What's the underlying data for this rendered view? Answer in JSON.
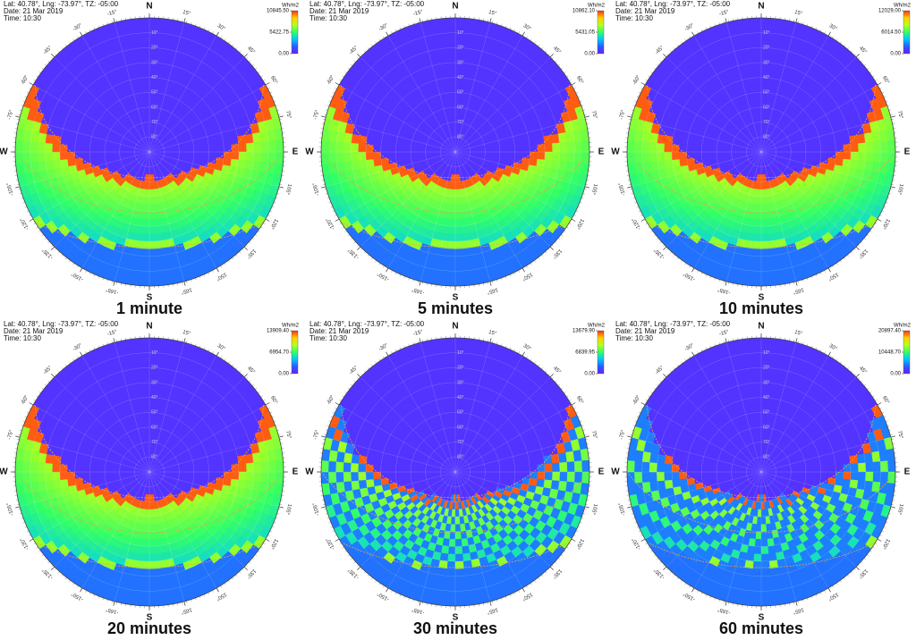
{
  "polar_axes": {
    "compass": [
      {
        "value": 0,
        "label": "N"
      },
      {
        "value": 90,
        "label": "E"
      },
      {
        "value": 180,
        "label": "S"
      },
      {
        "value": -90,
        "label": "W"
      }
    ],
    "azimuth_ticks": [
      {
        "value": -165,
        "label": "-165°"
      },
      {
        "value": -150,
        "label": "-150°"
      },
      {
        "value": -135,
        "label": "-135°"
      },
      {
        "value": -120,
        "label": "-120°"
      },
      {
        "value": -105,
        "label": "-105°"
      },
      {
        "value": -75,
        "label": "-75°"
      },
      {
        "value": -60,
        "label": "-60°"
      },
      {
        "value": -45,
        "label": "-45°"
      },
      {
        "value": -30,
        "label": "-30°"
      },
      {
        "value": -15,
        "label": "-15°"
      },
      {
        "value": 15,
        "label": "15°"
      },
      {
        "value": 30,
        "label": "30°"
      },
      {
        "value": 45,
        "label": "45°"
      },
      {
        "value": 60,
        "label": "60°"
      },
      {
        "value": 75,
        "label": "75°"
      },
      {
        "value": 105,
        "label": "105°"
      },
      {
        "value": 120,
        "label": "120°"
      },
      {
        "value": 135,
        "label": "135°"
      },
      {
        "value": 150,
        "label": "150°"
      },
      {
        "value": 165,
        "label": "165°"
      }
    ],
    "altitude_lim": [
      0,
      90
    ],
    "altitude_ticks": [
      {
        "value": 10,
        "label": "10°"
      },
      {
        "value": 20,
        "label": "20°"
      },
      {
        "value": 30,
        "label": "30°"
      },
      {
        "value": 40,
        "label": "40°"
      },
      {
        "value": 50,
        "label": "50°"
      },
      {
        "value": 60,
        "label": "60°"
      },
      {
        "value": 70,
        "label": "70°"
      },
      {
        "value": 80,
        "label": "80°"
      }
    ],
    "colormap": [
      "#6a1cff",
      "#2a5cff",
      "#00c8ff",
      "#33ff66",
      "#b8ff1a",
      "#ffd000",
      "#ff2a1a"
    ]
  },
  "chart_data": [
    {
      "type": "polar-heatmap",
      "header": [
        "Lat: 40.78°, Lng: -73.97°, TZ: -05:00",
        "Date: 21 Mar 2019",
        "Time: 10:30"
      ],
      "unit": "Wh/m2",
      "caption": "1 minute",
      "clim": [
        0,
        10845.5
      ],
      "cticks": [
        {
          "value": 0,
          "label": "0.00"
        },
        {
          "value": 5422.75,
          "label": "5422.75"
        },
        {
          "value": 10845.5,
          "label": "10845.50"
        }
      ]
    },
    {
      "type": "polar-heatmap",
      "header": [
        "Lat: 40.78°, Lng: -73.97°, TZ: -05:00",
        "Date: 21 Mar 2019",
        "Time: 10:30"
      ],
      "unit": "Wh/m2",
      "caption": "5 minutes",
      "clim": [
        0,
        10862.1
      ],
      "cticks": [
        {
          "value": 0,
          "label": "0.00"
        },
        {
          "value": 5431.05,
          "label": "5431.05"
        },
        {
          "value": 10862.1,
          "label": "10862.10"
        }
      ]
    },
    {
      "type": "polar-heatmap",
      "header": [
        "Lat: 40.78°, Lng: -73.97°, TZ: -05:00",
        "Date: 21 Mar 2019",
        "Time: 10:30"
      ],
      "unit": "Wh/m2",
      "caption": "10 minutes",
      "clim": [
        0,
        12029
      ],
      "cticks": [
        {
          "value": 0,
          "label": "0.00"
        },
        {
          "value": 6014.5,
          "label": "6014.50"
        },
        {
          "value": 12029,
          "label": "12029.00"
        }
      ]
    },
    {
      "type": "polar-heatmap",
      "header": [
        "Lat: 40.78°, Lng: -73.97°, TZ: -05:00",
        "Date: 21 Mar 2019",
        "Time: 10:30"
      ],
      "unit": "Wh/m2",
      "caption": "20 minutes",
      "clim": [
        0,
        13909.4
      ],
      "cticks": [
        {
          "value": 0,
          "label": "0.00"
        },
        {
          "value": 6954.7,
          "label": "6954.70"
        },
        {
          "value": 13909.4,
          "label": "13909.40"
        }
      ]
    },
    {
      "type": "polar-heatmap",
      "header": [
        "Lat: 40.78°, Lng: -73.97°, TZ: -05:00",
        "Date: 21 Mar 2019",
        "Time: 10:30"
      ],
      "unit": "Wh/m2",
      "caption": "30 minutes",
      "clim": [
        0,
        13679.9
      ],
      "cticks": [
        {
          "value": 0,
          "label": "0.00"
        },
        {
          "value": 6839.95,
          "label": "6839.95"
        },
        {
          "value": 13679.9,
          "label": "13679.90"
        }
      ]
    },
    {
      "type": "polar-heatmap",
      "header": [
        "Lat: 40.78°, Lng: -73.97°, TZ: -05:00",
        "Date: 21 Mar 2019",
        "Time: 10:30"
      ],
      "unit": "Wh/m2",
      "caption": "60 minutes",
      "clim": [
        0,
        20897.4
      ],
      "cticks": [
        {
          "value": 0,
          "label": "0.00"
        },
        {
          "value": 10448.7,
          "label": "10448.70"
        },
        {
          "value": 20897.4,
          "label": "20897.40"
        }
      ]
    }
  ]
}
